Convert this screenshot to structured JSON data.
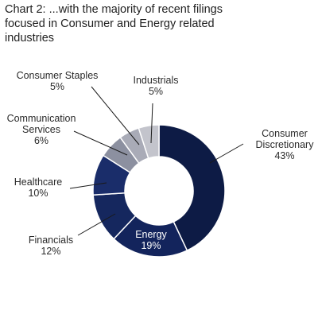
{
  "chart_data": {
    "type": "pie",
    "title_lines": [
      "Chart 2: ...with the majority of recent filings",
      "focused in Consumer and Energy related",
      "industries"
    ],
    "donut": true,
    "categories": [
      "Consumer Discretionary",
      "Energy",
      "Financials",
      "Healthcare",
      "Communication Services",
      "Consumer Staples",
      "Industrials"
    ],
    "values": [
      43,
      19,
      12,
      10,
      6,
      5,
      5
    ],
    "value_labels": [
      "43%",
      "19%",
      "12%",
      "10%",
      "6%",
      "5%",
      "5%"
    ],
    "label_lines": [
      [
        "Consumer",
        "Discretionary"
      ],
      [
        "Energy"
      ],
      [
        "Financials"
      ],
      [
        "Healthcare"
      ],
      [
        "Communication",
        "Services"
      ],
      [
        "Consumer Staples"
      ],
      [
        "Industrials"
      ]
    ],
    "colors": [
      "#0d1b45",
      "#13245c",
      "#15275e",
      "#1a2d6a",
      "#8c90a0",
      "#a9abb7",
      "#c3c4cc"
    ],
    "start_angle": "12 o'clock",
    "direction": "clockwise"
  }
}
